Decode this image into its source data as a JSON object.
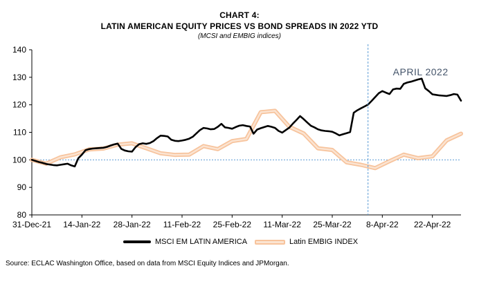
{
  "title": {
    "chart_no": "CHART 4:",
    "main": "LATIN AMERICAN EQUITY PRICES VS BOND SPREADS IN 2022 YTD",
    "sub": "(MCSI and EMBIG indices)"
  },
  "source": "Source: ECLAC Washington Office, based on data from MSCI Equity Indices and JPMorgan.",
  "colors": {
    "equity": "#000000",
    "embig": "#f7c39c",
    "embig_inner": "#fbe4d2",
    "ref": "#5b9bd5"
  },
  "chart_data": {
    "type": "line",
    "title": "LATIN AMERICAN EQUITY PRICES VS BOND SPREADS IN 2022 YTD",
    "subtitle": "(MCSI and EMBIG indices)",
    "xlabel": "",
    "ylabel": "",
    "ylim": [
      80,
      140
    ],
    "yticks": [
      80,
      90,
      100,
      110,
      120,
      130,
      140
    ],
    "xlim": [
      0,
      120
    ],
    "xticks": [
      {
        "day": 0,
        "label": "31-Dec-21"
      },
      {
        "day": 14,
        "label": "14-Jan-22"
      },
      {
        "day": 28,
        "label": "28-Jan-22"
      },
      {
        "day": 42,
        "label": "11-Feb-22"
      },
      {
        "day": 56,
        "label": "25-Feb-22"
      },
      {
        "day": 70,
        "label": "11-Mar-22"
      },
      {
        "day": 84,
        "label": "25-Mar-22"
      },
      {
        "day": 98,
        "label": "8-Apr-22"
      },
      {
        "day": 112,
        "label": "22-Apr-22"
      }
    ],
    "reference_line": {
      "y": 100
    },
    "vline": {
      "x": 94,
      "label": "APRIL 2022"
    },
    "series": [
      {
        "name": "MSCI EM LATIN AMERICA",
        "x": [
          0,
          1,
          2,
          3,
          4,
          5,
          6,
          7,
          8,
          9,
          10,
          11,
          12,
          13,
          14,
          15,
          16,
          17,
          18,
          19,
          20,
          21,
          22,
          23,
          24,
          25,
          26,
          27,
          28,
          29,
          30,
          31,
          32,
          33,
          34,
          35,
          36,
          37,
          38,
          39,
          40,
          41,
          42,
          43,
          44,
          45,
          46,
          47,
          48,
          49,
          50,
          51,
          52,
          53,
          54,
          55,
          56,
          57,
          58,
          59,
          60,
          61,
          62,
          63,
          64,
          65,
          66,
          67,
          68,
          69,
          70,
          71,
          72,
          73,
          74,
          75,
          76,
          77,
          78,
          79,
          80,
          81,
          82,
          83,
          84,
          85,
          86,
          87,
          88,
          89,
          90,
          91,
          92,
          93,
          94,
          95,
          96,
          97,
          98,
          99,
          100,
          101,
          102,
          103,
          104,
          105,
          106,
          107,
          108,
          109,
          110,
          111,
          112,
          113,
          114,
          115,
          116,
          117,
          118,
          119,
          120
        ],
        "values": [
          100,
          99.6,
          99.2,
          98.9,
          98.5,
          98.3,
          98.1,
          98.0,
          98.2,
          98.4,
          98.6,
          98.0,
          97.6,
          100.6,
          101.9,
          103.5,
          103.9,
          104.1,
          104.2,
          104.3,
          104.4,
          104.7,
          105.2,
          105.6,
          105.9,
          104.0,
          103.4,
          103.1,
          103.0,
          104.6,
          105.7,
          106.0,
          105.8,
          106.1,
          106.8,
          107.9,
          108.8,
          108.7,
          108.5,
          107.3,
          106.9,
          106.8,
          107.0,
          107.3,
          107.7,
          108.4,
          109.6,
          110.8,
          111.6,
          111.4,
          111.1,
          111.2,
          112.0,
          113.1,
          111.8,
          111.6,
          111.3,
          111.9,
          112.4,
          112.6,
          112.3,
          112.1,
          109.5,
          111.0,
          111.5,
          111.9,
          112.3,
          112.0,
          111.6,
          110.5,
          109.9,
          110.8,
          111.7,
          113.2,
          114.5,
          115.9,
          114.8,
          113.6,
          112.4,
          111.8,
          111.1,
          110.7,
          110.5,
          110.4,
          110.2,
          109.6,
          108.9,
          109.3,
          109.7,
          110.1,
          117.1,
          118.0,
          118.7,
          119.4,
          120.1,
          121.4,
          122.8,
          124.2,
          125.0,
          124.4,
          123.9,
          125.6,
          125.9,
          125.8,
          127.6,
          128.1,
          128.4,
          128.8,
          129.2,
          129.5,
          126.0,
          125.0,
          123.8,
          123.6,
          123.4,
          123.3,
          123.2,
          123.5,
          123.9,
          123.7,
          121.5
        ]
      },
      {
        "name": "Latin EMBIG INDEX",
        "x": [
          0,
          4,
          8,
          12,
          16,
          20,
          24,
          28,
          32,
          36,
          40,
          44,
          48,
          52,
          56,
          60,
          64,
          68,
          72,
          76,
          80,
          84,
          88,
          92,
          96,
          100,
          104,
          108,
          112,
          116,
          120
        ],
        "values": [
          100,
          98.6,
          100.9,
          102.0,
          103.8,
          104.1,
          105.5,
          106.0,
          104.2,
          102.4,
          101.8,
          101.9,
          105.0,
          103.9,
          106.8,
          107.6,
          117.3,
          117.8,
          112.0,
          109.6,
          104.2,
          103.6,
          99.1,
          98.2,
          97.0,
          99.5,
          101.9,
          100.6,
          101.3,
          107.1,
          109.5
        ]
      }
    ]
  }
}
